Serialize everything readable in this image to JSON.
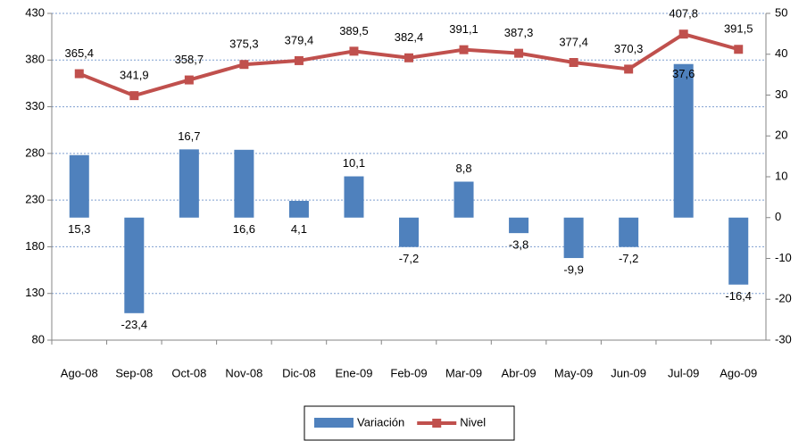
{
  "chart_data": {
    "type": "combo",
    "categories": [
      "Ago-08",
      "Sep-08",
      "Oct-08",
      "Nov-08",
      "Dic-08",
      "Ene-09",
      "Feb-09",
      "Mar-09",
      "Abr-09",
      "May-09",
      "Jun-09",
      "Jul-09",
      "Ago-09"
    ],
    "series": [
      {
        "name": "Variación",
        "type": "bar",
        "axis": "y2",
        "color": "#4f81bd",
        "values": [
          15.3,
          -23.4,
          16.7,
          16.6,
          4.1,
          10.1,
          -7.2,
          8.8,
          -3.8,
          -9.9,
          -7.2,
          37.6,
          -16.4
        ],
        "value_labels": [
          "15,3",
          "-23,4",
          "16,7",
          "16,6",
          "4,1",
          "10,1",
          "-7,2",
          "8,8",
          "-3,8",
          "-9,9",
          "-7,2",
          "37,6",
          "-16,4"
        ]
      },
      {
        "name": "Nivel",
        "type": "line",
        "axis": "y",
        "color": "#c0504d",
        "values": [
          365.4,
          341.9,
          358.7,
          375.3,
          379.4,
          389.5,
          382.4,
          391.1,
          387.3,
          377.4,
          370.3,
          407.8,
          391.5
        ],
        "value_labels": [
          "365,4",
          "341,9",
          "358,7",
          "375,3",
          "379,4",
          "389,5",
          "382,4",
          "391,1",
          "387,3",
          "377,4",
          "370,3",
          "407,8",
          "391,5"
        ]
      }
    ],
    "ylim": [
      80,
      430
    ],
    "yticks": [
      80,
      130,
      180,
      230,
      280,
      330,
      380,
      430
    ],
    "y2lim": [
      -30,
      50
    ],
    "y2ticks": [
      -30,
      -20,
      -10,
      0,
      10,
      20,
      30,
      40,
      50
    ],
    "grid": true,
    "legend": "bottom"
  }
}
